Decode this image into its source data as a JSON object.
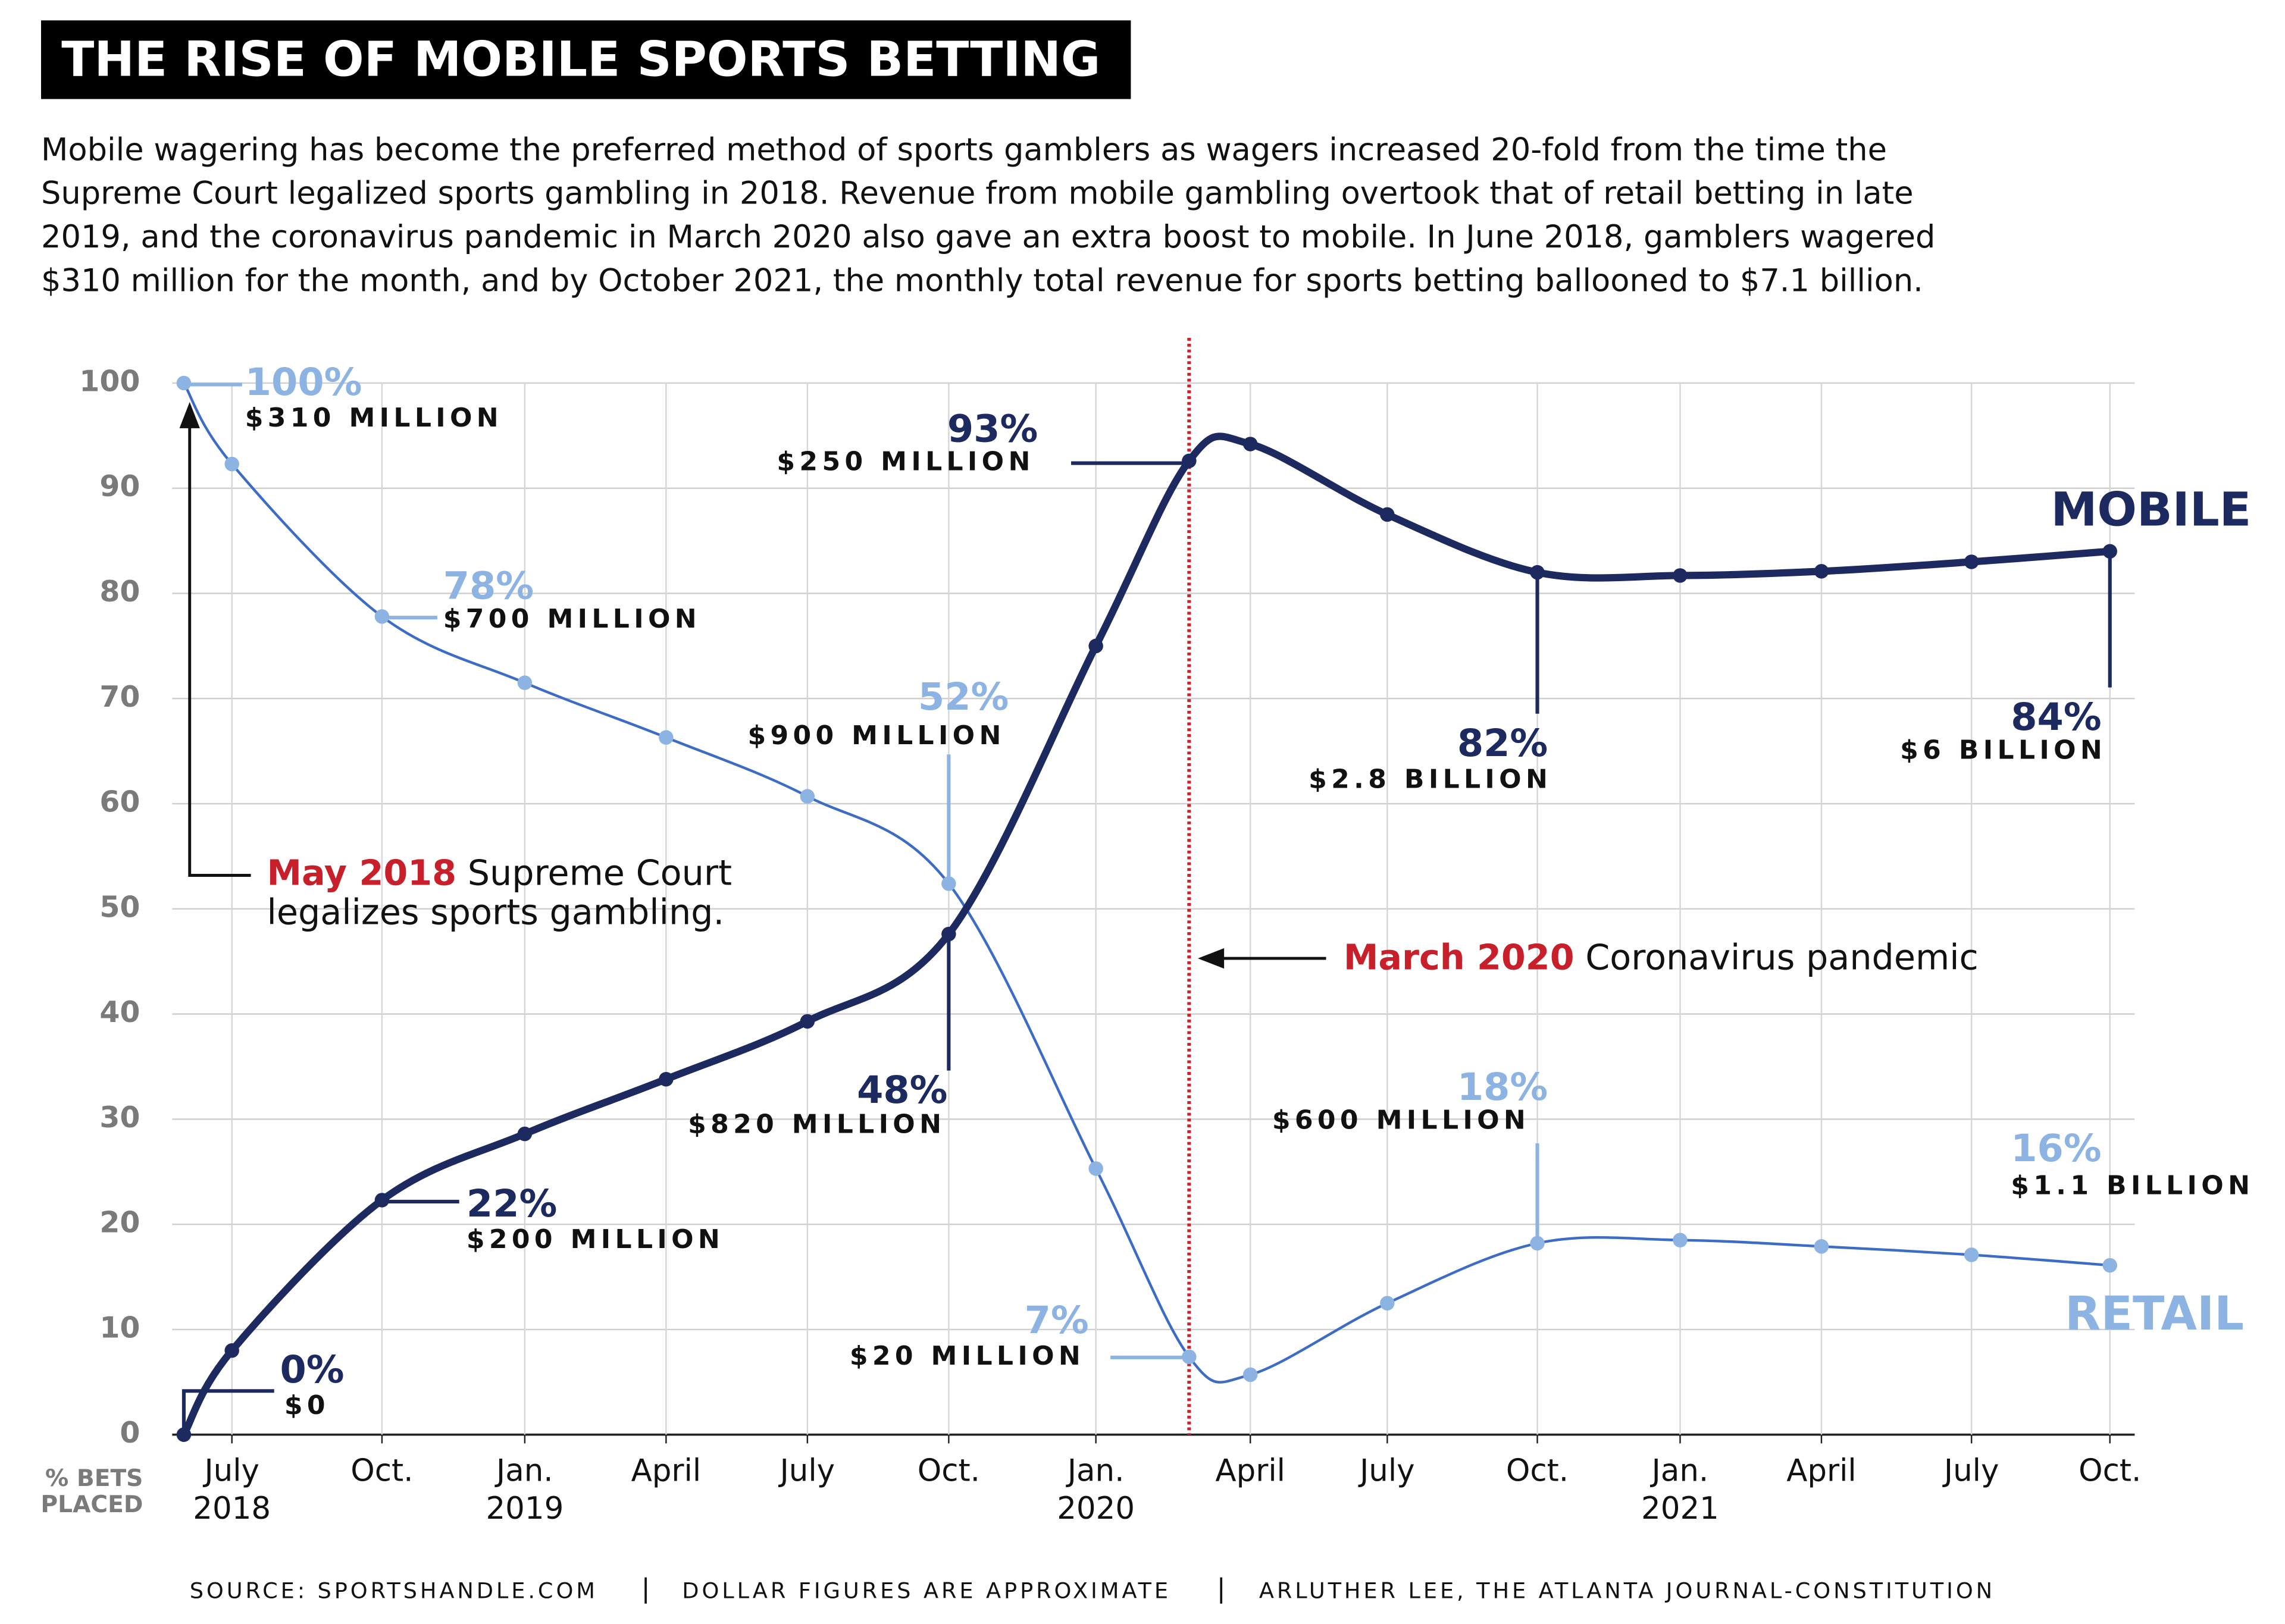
{
  "chart_data": {
    "type": "line",
    "title": "THE RISE OF MOBILE SPORTS BETTING",
    "subtitle": [
      "Mobile wagering has become the preferred method of sports gamblers as wagers increased 20-fold from the time the",
      "Supreme Court legalized sports gambling in 2018. Revenue from mobile gambling overtook that of retail betting in late",
      "2019, and the coronavirus pandemic in March 2020 also gave an extra boost to mobile. In June 2018, gamblers wagered",
      "$310 million for the month, and by October 2021, the monthly total revenue for sports betting ballooned to $7.1 billion."
    ],
    "y_label": [
      "% BETS",
      "PLACED"
    ],
    "categories": [
      null,
      "July",
      "Oct.",
      "Jan.",
      "April",
      "July",
      "Oct.",
      "Jan.",
      null,
      "April",
      "July",
      "Oct.",
      "Jan.",
      "April",
      "July",
      "Oct."
    ],
    "category_years": [
      null,
      "2018",
      null,
      "2019",
      null,
      null,
      null,
      "2020",
      null,
      null,
      null,
      null,
      "2021",
      null,
      null,
      null
    ],
    "ylim": [
      0,
      100
    ],
    "yticks": [
      0,
      10,
      20,
      30,
      40,
      50,
      60,
      70,
      80,
      90,
      100
    ],
    "grid": true,
    "series": [
      {
        "name": "MOBILE",
        "color": "#1c2a60",
        "values": [
          0,
          8,
          22.3,
          28.6,
          33.8,
          39.3,
          47.6,
          75,
          92.6,
          94.2,
          87.5,
          82,
          81.7,
          82.1,
          83,
          84
        ],
        "value_labels": [
          "0%",
          null,
          "22%",
          null,
          null,
          null,
          "48%",
          null,
          "93%",
          null,
          null,
          "82%",
          null,
          null,
          null,
          "84%"
        ],
        "dollar_labels": [
          "$0",
          null,
          "$200 MILLION",
          null,
          null,
          null,
          "$820 MILLION",
          null,
          "$250 MILLION",
          null,
          null,
          "$2.8 BILLION",
          null,
          null,
          null,
          "$6 BILLION"
        ]
      },
      {
        "name": "RETAIL",
        "color": "#3d6cc6",
        "values": [
          100,
          92.3,
          77.8,
          71.5,
          66.3,
          60.7,
          52.4,
          25.3,
          7.4,
          5.7,
          12.5,
          18.2,
          18.5,
          17.9,
          17.1,
          16.1
        ],
        "value_labels": [
          "100%",
          null,
          "78%",
          null,
          null,
          null,
          "52%",
          null,
          "7%",
          null,
          null,
          "18%",
          null,
          null,
          null,
          "16%"
        ],
        "dollar_labels": [
          "$310 MILLION",
          null,
          "$700 MILLION",
          null,
          null,
          null,
          "$900 MILLION",
          null,
          "$20 MILLION",
          null,
          null,
          "$600 MILLION",
          null,
          null,
          null,
          "$1.1 BILLION"
        ]
      }
    ],
    "annotations": [
      {
        "highlight": "May 2018",
        "text": " Supreme Court",
        "text2": "legalizes sports gambling."
      },
      {
        "highlight": "March 2020",
        "text": " Coronavirus pandemic"
      }
    ],
    "footer": [
      "SOURCE: SPORTSHANDLE.COM",
      "DOLLAR FIGURES ARE APPROXIMATE",
      "ARLUTHER LEE, THE ATLANTA JOURNAL-CONSTITUTION"
    ]
  }
}
